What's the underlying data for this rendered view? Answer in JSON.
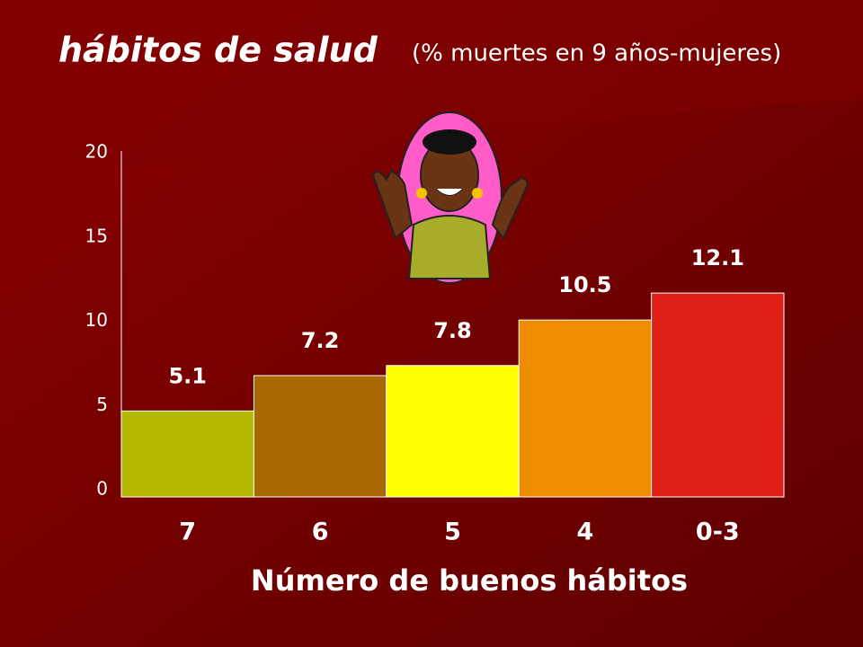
{
  "chart_data": {
    "type": "bar",
    "title": "hábitos de salud",
    "subtitle": "(% muertes en 9 años-mujeres)",
    "x_label": "Número de buenos hábitos",
    "categories": [
      "7",
      "6",
      "5",
      "4",
      "0-3"
    ],
    "values": [
      5.1,
      7.2,
      7.8,
      10.5,
      12.1
    ],
    "colors": [
      "#b5b800",
      "#a86a00",
      "#ffff00",
      "#ee8c00",
      "#e02016"
    ],
    "ylim": [
      0,
      20
    ],
    "yticks": [
      0,
      5,
      10,
      15,
      20
    ],
    "grid": false
  }
}
